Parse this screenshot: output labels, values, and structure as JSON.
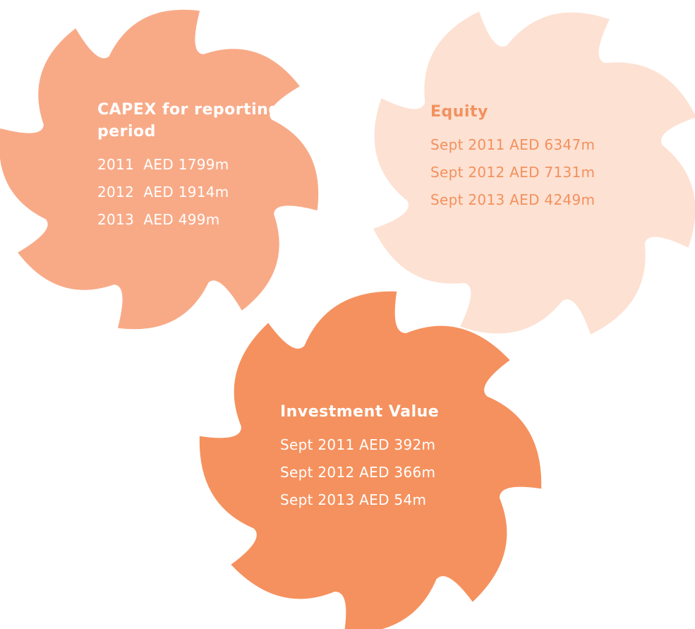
{
  "blocks": [
    {
      "title": "CAPEX for reporting period",
      "lines": [
        "2011  AED 1799m",
        "2012  AED 1914m",
        "2013  AED 499m"
      ]
    },
    {
      "title": "Equity",
      "lines": [
        "Sept 2011 AED 6347m",
        "Sept 2012 AED 7131m",
        "Sept 2013 AED 4249m"
      ]
    },
    {
      "title": "Investment Value",
      "lines": [
        "Sept 2011 AED 392m",
        "Sept 2012 AED 366m",
        "Sept 2013 AED 54m"
      ]
    }
  ]
}
